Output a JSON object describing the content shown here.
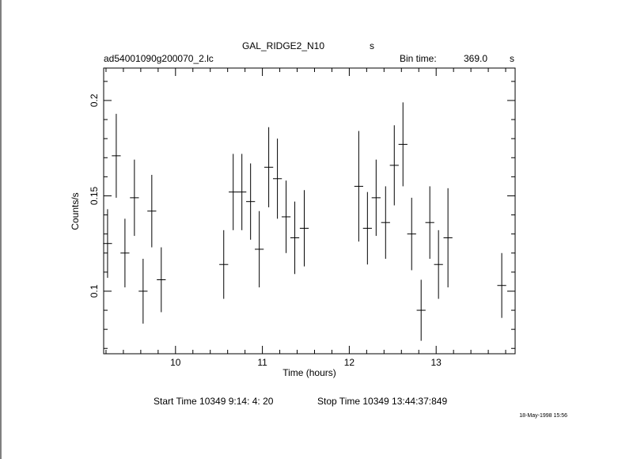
{
  "chart_data": {
    "type": "errorbar",
    "title": "GAL_RIDGE2_N10",
    "title_unit": "s",
    "file_name": "ad54001090g200070_2.lc",
    "bin_time_label": "Bin time:",
    "bin_time": "369.0",
    "bin_time_unit": "s",
    "x_label": "Time (hours)",
    "y_label": "Counts/s",
    "start_time": "Start Time 10349  9:14: 4: 20",
    "stop_time": "Stop Time 10349 13:44:37:849",
    "date_stamp": "18-May-1998 15:56",
    "xlim": [
      9.173,
      13.909
    ],
    "ylim": [
      0.0672,
      0.217
    ],
    "xticks": [
      10,
      11,
      12,
      13
    ],
    "yticks": [
      0.1,
      0.15,
      0.2
    ],
    "xminorticks": [
      9.2,
      9.4,
      9.6,
      9.8,
      10.2,
      10.4,
      10.6,
      10.8,
      11.2,
      11.4,
      11.6,
      11.8,
      12.2,
      12.4,
      12.6,
      12.8,
      13.2,
      13.4,
      13.6,
      13.8
    ],
    "yminorticks": [
      0.07,
      0.08,
      0.09,
      0.11,
      0.12,
      0.13,
      0.14,
      0.16,
      0.17,
      0.18,
      0.19,
      0.21
    ],
    "color": "#000000",
    "xerr": 0.0512,
    "x": [
      9.218,
      9.318,
      9.418,
      9.527,
      9.627,
      9.727,
      9.836,
      10.555,
      10.664,
      10.764,
      10.864,
      10.964,
      11.073,
      11.173,
      11.273,
      11.373,
      11.482,
      12.109,
      12.209,
      12.309,
      12.418,
      12.518,
      12.618,
      12.718,
      12.827,
      12.927,
      13.027,
      13.136,
      13.755
    ],
    "values": [
      0.125,
      0.171,
      0.12,
      0.149,
      0.1,
      0.142,
      0.106,
      0.114,
      0.152,
      0.152,
      0.147,
      0.122,
      0.165,
      0.159,
      0.139,
      0.128,
      0.133,
      0.155,
      0.133,
      0.149,
      0.136,
      0.166,
      0.177,
      0.13,
      0.09,
      0.136,
      0.114,
      0.128,
      0.103
    ],
    "errors": [
      0.018,
      0.022,
      0.018,
      0.02,
      0.017,
      0.019,
      0.017,
      0.018,
      0.02,
      0.02,
      0.02,
      0.02,
      0.021,
      0.021,
      0.019,
      0.019,
      0.02,
      0.029,
      0.019,
      0.02,
      0.019,
      0.021,
      0.022,
      0.019,
      0.016,
      0.019,
      0.018,
      0.026,
      0.017
    ]
  }
}
